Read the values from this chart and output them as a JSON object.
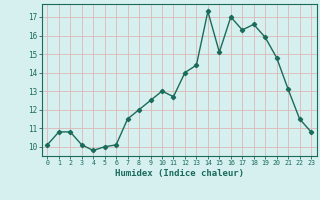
{
  "x": [
    0,
    1,
    2,
    3,
    4,
    5,
    6,
    7,
    8,
    9,
    10,
    11,
    12,
    13,
    14,
    15,
    16,
    17,
    18,
    19,
    20,
    21,
    22,
    23
  ],
  "y": [
    10.1,
    10.8,
    10.8,
    10.1,
    9.8,
    10.0,
    10.1,
    11.5,
    12.0,
    12.5,
    13.0,
    12.7,
    14.0,
    14.4,
    17.3,
    15.1,
    17.0,
    16.3,
    16.6,
    15.9,
    14.8,
    13.1,
    11.5,
    10.8
  ],
  "xlabel": "Humidex (Indice chaleur)",
  "ylim": [
    9.5,
    17.7
  ],
  "xlim": [
    -0.5,
    23.5
  ],
  "yticks": [
    10,
    11,
    12,
    13,
    14,
    15,
    16,
    17
  ],
  "xticks": [
    0,
    1,
    2,
    3,
    4,
    5,
    6,
    7,
    8,
    9,
    10,
    11,
    12,
    13,
    14,
    15,
    16,
    17,
    18,
    19,
    20,
    21,
    22,
    23
  ],
  "line_color": "#1a6b5a",
  "marker": "D",
  "marker_size": 2.2,
  "bg_color": "#d6f0ef",
  "grid_color": "#dbb8b8",
  "tick_label_color": "#1a6b5a",
  "xlabel_color": "#1a6b5a",
  "line_width": 1.0
}
